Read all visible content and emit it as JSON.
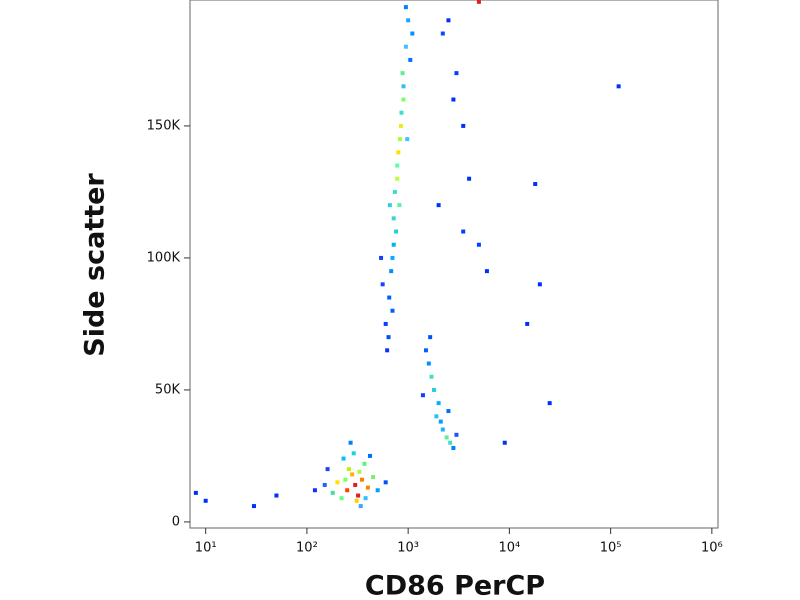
{
  "chart_data": {
    "type": "scatter",
    "x_label": "CD86 PerCP",
    "y_label": "Side scatter",
    "x_scale": "log",
    "xlim": [
      7,
      1150000
    ],
    "xticks": [
      {
        "value": 10,
        "label": "10¹"
      },
      {
        "value": 100,
        "label": "10²"
      },
      {
        "value": 1000,
        "label": "10³"
      },
      {
        "value": 10000,
        "label": "10⁴"
      },
      {
        "value": 100000,
        "label": "10⁵"
      },
      {
        "value": 1000000,
        "label": "10⁶"
      }
    ],
    "ylim": [
      -2300,
      197700
    ],
    "yticks": [
      {
        "value": 0,
        "label": "0"
      },
      {
        "value": 50000,
        "label": "50K"
      },
      {
        "value": 100000,
        "label": "100K"
      },
      {
        "value": 150000,
        "label": "150K"
      }
    ],
    "x": [
      300,
      250,
      350,
      280,
      320,
      200,
      400,
      260,
      310,
      180,
      450,
      230,
      370,
      150,
      500,
      290,
      340,
      220,
      120,
      600,
      270,
      330,
      380,
      160,
      420,
      240,
      800,
      850,
      780,
      900,
      820,
      760,
      700,
      880,
      950,
      740,
      680,
      650,
      1000,
      720,
      830,
      600,
      620,
      900,
      950,
      1050,
      560,
      700,
      780,
      860,
      720,
      640,
      1100,
      540,
      980,
      660,
      1800,
      1700,
      2000,
      1600,
      1900,
      2400,
      2600,
      2200,
      2800,
      1500,
      1400,
      2100,
      1650,
      3000,
      2500,
      2500,
      3000,
      3500,
      2200,
      4000,
      5000,
      2800,
      20000,
      15000,
      18000,
      25000,
      120000,
      9000,
      3500,
      6000,
      2000,
      10,
      8,
      30,
      50,
      5000
    ],
    "y": [
      14000,
      12000,
      16000,
      18000,
      10000,
      15000,
      13000,
      20000,
      8000,
      11000,
      17000,
      24000,
      22000,
      14000,
      12000,
      26000,
      6000,
      9000,
      12000,
      15000,
      30000,
      19000,
      9000,
      20000,
      25000,
      16000,
      140000,
      150000,
      130000,
      160000,
      120000,
      110000,
      100000,
      170000,
      180000,
      125000,
      95000,
      85000,
      190000,
      115000,
      145000,
      75000,
      65000,
      165000,
      195000,
      175000,
      90000,
      80000,
      135000,
      155000,
      105000,
      70000,
      185000,
      100000,
      145000,
      120000,
      50000,
      55000,
      45000,
      60000,
      40000,
      32000,
      30000,
      35000,
      28000,
      65000,
      48000,
      38000,
      70000,
      33000,
      42000,
      190000,
      170000,
      150000,
      185000,
      130000,
      105000,
      160000,
      90000,
      75000,
      128000,
      45000,
      165000,
      30000,
      110000,
      95000,
      120000,
      8000,
      11000,
      6000,
      10000,
      197000
    ],
    "colors": [
      "#e02020",
      "#ff4000",
      "#ff8000",
      "#ffb000",
      "#e02020",
      "#ffe000",
      "#ff8000",
      "#c0f000",
      "#ffd000",
      "#40e0a0",
      "#80f060",
      "#00c0ff",
      "#60f080",
      "#2060ff",
      "#00a0ff",
      "#20d0e0",
      "#40a0ff",
      "#60ff80",
      "#1030ff",
      "#0050ff",
      "#0080ff",
      "#a0ff40",
      "#30c0ff",
      "#2040ff",
      "#0070ff",
      "#80ff60",
      "#ffe000",
      "#e0f020",
      "#c0ff30",
      "#80ff60",
      "#60f0a0",
      "#20d0e0",
      "#00b0ff",
      "#60f090",
      "#40c0ff",
      "#40e0c0",
      "#0090ff",
      "#0060ff",
      "#20a0ff",
      "#40d0d0",
      "#a0ff40",
      "#0040ff",
      "#1030ff",
      "#30c0f0",
      "#0080ff",
      "#0070ff",
      "#2040ff",
      "#0060ff",
      "#60ffa0",
      "#40e0c0",
      "#00b0ff",
      "#0050ff",
      "#0090ff",
      "#1040ff",
      "#40c0ff",
      "#30d0e0",
      "#20d0e0",
      "#40e0c0",
      "#00b0ff",
      "#0090ff",
      "#30c0f0",
      "#60f090",
      "#40e0c0",
      "#20b0ff",
      "#0080ff",
      "#0060ff",
      "#1040ff",
      "#00a0ff",
      "#0050ff",
      "#2050ff",
      "#0070ff",
      "#0030ff",
      "#0040ff",
      "#0030ff",
      "#0050ff",
      "#0030ff",
      "#0040ff",
      "#0030ff",
      "#0030ff",
      "#0030ff",
      "#0030ff",
      "#0030ff",
      "#0030ff",
      "#0030ff",
      "#0040ff",
      "#0030ff",
      "#0030ff",
      "#0030ff",
      "#0030ff",
      "#0030ff",
      "#0030ff",
      "#e02020"
    ]
  }
}
